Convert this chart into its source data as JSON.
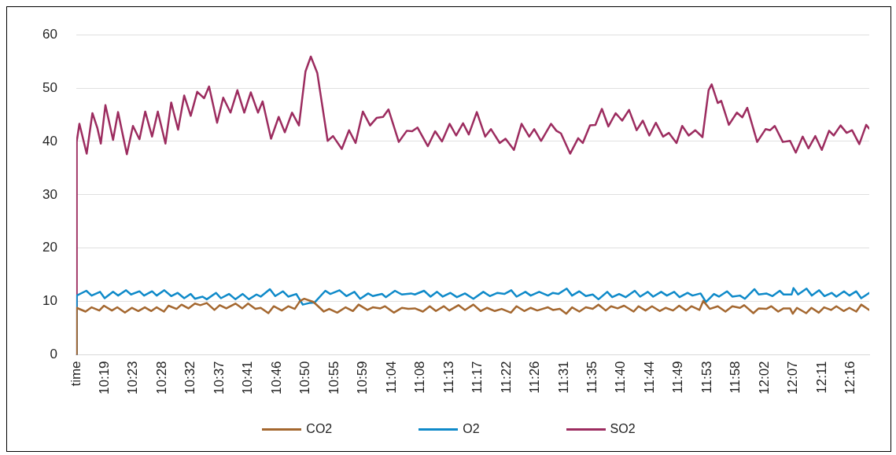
{
  "chart_data": {
    "type": "line",
    "xlim": [
      10.2417,
      12.315
    ],
    "xticks": [
      {
        "value": 10.2417,
        "label": "time"
      },
      {
        "value": 10.3167,
        "label": "10:19"
      },
      {
        "value": 10.3914,
        "label": "10:23"
      },
      {
        "value": 10.4667,
        "label": "10:28"
      },
      {
        "value": 10.5414,
        "label": "10:32"
      },
      {
        "value": 10.6167,
        "label": "10:37"
      },
      {
        "value": 10.6914,
        "label": "10:41"
      },
      {
        "value": 10.7667,
        "label": "10:46"
      },
      {
        "value": 10.8414,
        "label": "10:50"
      },
      {
        "value": 10.9167,
        "label": "10:55"
      },
      {
        "value": 10.9914,
        "label": "10:59"
      },
      {
        "value": 11.0667,
        "label": "11:04"
      },
      {
        "value": 11.1414,
        "label": "11:08"
      },
      {
        "value": 11.2167,
        "label": "11:13"
      },
      {
        "value": 11.2914,
        "label": "11:17"
      },
      {
        "value": 11.3667,
        "label": "11:22"
      },
      {
        "value": 11.4414,
        "label": "11:26"
      },
      {
        "value": 11.5167,
        "label": "11:31"
      },
      {
        "value": 11.5914,
        "label": "11:35"
      },
      {
        "value": 11.6667,
        "label": "11:40"
      },
      {
        "value": 11.7414,
        "label": "11:44"
      },
      {
        "value": 11.8167,
        "label": "11:49"
      },
      {
        "value": 11.8914,
        "label": "11:53"
      },
      {
        "value": 11.9667,
        "label": "11:58"
      },
      {
        "value": 12.0414,
        "label": "12:02"
      },
      {
        "value": 12.1167,
        "label": "12:07"
      },
      {
        "value": 12.1914,
        "label": "12:11"
      },
      {
        "value": 12.2667,
        "label": "12:16"
      }
    ],
    "ylim": [
      0,
      60
    ],
    "yticks": [
      0,
      10,
      20,
      30,
      40,
      50,
      60
    ],
    "grid": "y",
    "legend": "bottom",
    "marker": "none",
    "line_style": "solid",
    "series": [
      {
        "name": "CO2",
        "color": "#a4672f",
        "x": [
          10.242,
          10.243,
          10.266,
          10.282,
          10.302,
          10.314,
          10.335,
          10.349,
          10.369,
          10.387,
          10.404,
          10.421,
          10.438,
          10.452,
          10.471,
          10.483,
          10.504,
          10.517,
          10.535,
          10.552,
          10.566,
          10.583,
          10.603,
          10.617,
          10.634,
          10.658,
          10.676,
          10.691,
          10.71,
          10.724,
          10.744,
          10.758,
          10.779,
          10.796,
          10.813,
          10.827,
          10.838,
          10.862,
          10.889,
          10.903,
          10.924,
          10.946,
          10.965,
          10.98,
          11.003,
          11.017,
          11.037,
          11.049,
          11.072,
          11.093,
          11.11,
          11.127,
          11.148,
          11.166,
          11.182,
          11.203,
          11.217,
          11.241,
          11.258,
          11.28,
          11.299,
          11.316,
          11.336,
          11.354,
          11.378,
          11.393,
          11.413,
          11.43,
          11.447,
          11.475,
          11.488,
          11.506,
          11.523,
          11.538,
          11.557,
          11.574,
          11.592,
          11.607,
          11.626,
          11.64,
          11.657,
          11.674,
          11.699,
          11.712,
          11.73,
          11.747,
          11.767,
          11.783,
          11.802,
          11.818,
          11.836,
          11.85,
          11.871,
          11.881,
          11.898,
          11.919,
          11.939,
          11.957,
          11.977,
          11.988,
          12.012,
          12.026,
          12.046,
          12.059,
          12.077,
          12.091,
          12.108,
          12.115,
          12.126,
          12.15,
          12.164,
          12.183,
          12.197,
          12.215,
          12.229,
          12.248,
          12.263,
          12.281,
          12.294,
          12.315
        ],
        "values": [
          0,
          8.8,
          8.1,
          8.9,
          8.3,
          9.2,
          8.3,
          8.9,
          7.9,
          8.8,
          8.2,
          8.9,
          8.2,
          8.9,
          8.1,
          9.2,
          8.6,
          9.4,
          8.7,
          9.6,
          9.3,
          9.7,
          8.4,
          9.3,
          8.7,
          9.6,
          8.7,
          9.6,
          8.6,
          8.8,
          7.8,
          9.1,
          8.3,
          9.1,
          8.6,
          10.1,
          10.5,
          9.9,
          8.1,
          8.6,
          7.9,
          8.9,
          8.2,
          9.4,
          8.4,
          8.9,
          8.7,
          9.1,
          7.9,
          8.8,
          8.6,
          8.7,
          8.1,
          9.1,
          8.2,
          9.1,
          8.3,
          9.3,
          8.4,
          9.4,
          8.2,
          8.8,
          8.2,
          8.6,
          7.9,
          9.1,
          8.2,
          8.8,
          8.3,
          8.9,
          8.4,
          8.6,
          7.7,
          8.9,
          8.1,
          8.9,
          8.6,
          9.4,
          8.3,
          9.1,
          8.7,
          9.2,
          8.1,
          9.1,
          8.3,
          9.1,
          8.2,
          8.8,
          8.3,
          9.2,
          8.3,
          9.1,
          8.4,
          10.1,
          8.6,
          9.1,
          8.1,
          9.1,
          8.8,
          9.3,
          7.8,
          8.7,
          8.6,
          9.1,
          8.1,
          8.7,
          8.7,
          7.7,
          8.8,
          7.8,
          8.8,
          7.9,
          8.9,
          8.4,
          9.1,
          8.2,
          8.8,
          8.1,
          9.4,
          8.4
        ]
      },
      {
        "name": "O2",
        "color": "#0f8ac9",
        "x": [
          10.242,
          10.243,
          10.268,
          10.282,
          10.304,
          10.316,
          10.338,
          10.351,
          10.372,
          10.385,
          10.407,
          10.419,
          10.44,
          10.452,
          10.472,
          10.49,
          10.507,
          10.524,
          10.541,
          10.552,
          10.572,
          10.583,
          10.607,
          10.62,
          10.641,
          10.658,
          10.677,
          10.693,
          10.713,
          10.724,
          10.748,
          10.762,
          10.782,
          10.796,
          10.817,
          10.834,
          10.851,
          10.865,
          10.893,
          10.906,
          10.93,
          10.948,
          10.969,
          10.984,
          11.005,
          11.017,
          11.041,
          11.051,
          11.075,
          11.093,
          11.117,
          11.127,
          11.151,
          11.168,
          11.185,
          11.2,
          11.22,
          11.237,
          11.258,
          11.28,
          11.306,
          11.323,
          11.343,
          11.361,
          11.379,
          11.393,
          11.416,
          11.43,
          11.452,
          11.475,
          11.488,
          11.502,
          11.524,
          11.538,
          11.557,
          11.574,
          11.592,
          11.607,
          11.63,
          11.643,
          11.661,
          11.678,
          11.702,
          11.716,
          11.736,
          11.75,
          11.771,
          11.786,
          11.805,
          11.819,
          11.84,
          11.853,
          11.874,
          11.888,
          11.909,
          11.922,
          11.943,
          11.957,
          11.977,
          11.99,
          12.015,
          12.026,
          12.046,
          12.062,
          12.081,
          12.091,
          12.112,
          12.117,
          12.129,
          12.151,
          12.165,
          12.184,
          12.198,
          12.217,
          12.229,
          12.249,
          12.263,
          12.281,
          12.294,
          12.315
        ],
        "values": [
          0,
          11.1,
          12.0,
          11.1,
          11.8,
          10.6,
          11.8,
          11.1,
          12.1,
          11.3,
          11.9,
          11.1,
          11.9,
          11.1,
          12.1,
          11.0,
          11.6,
          10.6,
          11.4,
          10.5,
          10.9,
          10.4,
          11.6,
          10.6,
          11.4,
          10.4,
          11.4,
          10.4,
          11.3,
          10.9,
          12.3,
          11.0,
          11.9,
          10.9,
          11.4,
          9.4,
          9.7,
          9.8,
          12.0,
          11.4,
          12.1,
          11.0,
          11.8,
          10.5,
          11.5,
          11.0,
          11.4,
          10.8,
          12.0,
          11.3,
          11.5,
          11.3,
          12.0,
          10.9,
          11.8,
          10.9,
          11.6,
          10.8,
          11.5,
          10.5,
          11.8,
          11.0,
          11.6,
          11.4,
          12.1,
          10.9,
          11.8,
          11.1,
          11.8,
          11.1,
          11.6,
          11.4,
          12.4,
          11.1,
          11.9,
          11.0,
          11.3,
          10.4,
          11.8,
          10.8,
          11.4,
          10.8,
          12.0,
          10.9,
          11.8,
          10.9,
          11.8,
          11.1,
          11.8,
          10.8,
          11.6,
          11.1,
          11.5,
          9.9,
          11.4,
          10.9,
          11.9,
          10.9,
          11.1,
          10.5,
          12.3,
          11.3,
          11.5,
          11.0,
          12.0,
          11.3,
          11.3,
          12.5,
          11.3,
          12.4,
          11.1,
          12.1,
          11.0,
          11.6,
          10.9,
          11.9,
          11.1,
          11.9,
          10.6,
          11.6
        ]
      },
      {
        "name": "SO2",
        "color": "#9c2c5f",
        "x": [
          10.242,
          10.243,
          10.25,
          10.269,
          10.284,
          10.297,
          10.306,
          10.318,
          10.338,
          10.351,
          10.374,
          10.39,
          10.407,
          10.422,
          10.44,
          10.455,
          10.475,
          10.49,
          10.508,
          10.524,
          10.541,
          10.558,
          10.576,
          10.589,
          10.61,
          10.626,
          10.645,
          10.663,
          10.681,
          10.698,
          10.717,
          10.729,
          10.751,
          10.771,
          10.787,
          10.806,
          10.824,
          10.841,
          10.855,
          10.872,
          10.899,
          10.913,
          10.936,
          10.955,
          10.972,
          10.991,
          11.01,
          11.027,
          11.044,
          11.058,
          11.085,
          11.106,
          11.12,
          11.134,
          11.161,
          11.18,
          11.198,
          11.218,
          11.235,
          11.253,
          11.268,
          11.289,
          11.311,
          11.326,
          11.349,
          11.364,
          11.386,
          11.406,
          11.426,
          11.439,
          11.457,
          11.483,
          11.497,
          11.509,
          11.533,
          11.554,
          11.566,
          11.585,
          11.599,
          11.616,
          11.633,
          11.652,
          11.669,
          11.687,
          11.707,
          11.723,
          11.74,
          11.757,
          11.776,
          11.791,
          11.811,
          11.826,
          11.843,
          11.86,
          11.879,
          11.895,
          11.903,
          11.919,
          11.928,
          11.948,
          11.969,
          11.983,
          11.996,
          12.022,
          12.044,
          12.056,
          12.068,
          12.089,
          12.108,
          12.123,
          12.141,
          12.156,
          12.174,
          12.191,
          12.21,
          12.222,
          12.24,
          12.256,
          12.27,
          12.289,
          12.307,
          12.315
        ],
        "values": [
          0,
          40,
          43.3,
          37.7,
          45.3,
          42.5,
          39.6,
          46.8,
          40.3,
          45.5,
          37.6,
          42.9,
          40.4,
          45.6,
          40.9,
          45.6,
          39.6,
          47.3,
          42.2,
          48.6,
          44.8,
          49.3,
          48.1,
          50.3,
          43.5,
          48.2,
          45.4,
          49.6,
          45.4,
          49.2,
          45.4,
          47.5,
          40.5,
          44.6,
          41.7,
          45.4,
          43.0,
          53.1,
          55.9,
          52.8,
          40.1,
          41.0,
          38.6,
          42.1,
          39.7,
          45.6,
          43.0,
          44.4,
          44.6,
          46.0,
          39.9,
          42.0,
          41.9,
          42.6,
          39.1,
          41.9,
          40.0,
          43.3,
          41.1,
          43.4,
          41.3,
          45.5,
          40.9,
          42.3,
          39.7,
          40.5,
          38.4,
          43.3,
          40.9,
          42.3,
          40.1,
          43.3,
          42.0,
          41.5,
          37.7,
          40.6,
          39.7,
          43.0,
          43.1,
          46.1,
          42.8,
          45.3,
          43.9,
          45.9,
          42.1,
          43.9,
          41.1,
          43.5,
          40.9,
          41.6,
          39.7,
          42.9,
          41.1,
          42.1,
          40.8,
          49.6,
          50.7,
          47.2,
          47.6,
          43.1,
          45.4,
          44.5,
          46.3,
          39.9,
          42.3,
          42.1,
          42.9,
          39.9,
          40.1,
          37.9,
          40.9,
          38.7,
          41.0,
          38.4,
          42.0,
          41.1,
          43.0,
          41.6,
          42.1,
          39.5,
          43.1,
          42.4
        ]
      }
    ]
  }
}
